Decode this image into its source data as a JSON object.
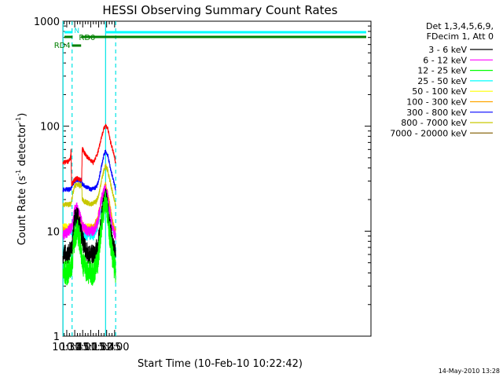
{
  "chart_data": {
    "type": "line",
    "title": "HESSI Observing Summary Count Rates",
    "xlabel": "Start Time (10-Feb-10 10:22:42)",
    "ylabel": "Count Rate (s",
    "ylabel_sup1": "-1",
    "ylabel_mid": " detector",
    "ylabel_sup2": "-1",
    "ylabel_end": ")",
    "x_unit": "minutes of day",
    "xlim": [
      622.7,
      1202
    ],
    "ylim": [
      1,
      1000
    ],
    "yscale": "log",
    "x_ticks": [
      {
        "t": 630,
        "label": "10:30"
      },
      {
        "t": 645,
        "label": "10:45"
      },
      {
        "t": 660,
        "label": "11:00"
      },
      {
        "t": 675,
        "label": "11:15"
      },
      {
        "t": 690,
        "label": "11:30"
      },
      {
        "t": 705,
        "label": "11:45"
      },
      {
        "t": 720,
        "label": "12:00"
      }
    ],
    "y_ticks": [
      {
        "v": 1,
        "label": "1"
      },
      {
        "v": 10,
        "label": "10"
      },
      {
        "v": 100,
        "label": "100"
      },
      {
        "v": 1000,
        "label": "1000"
      }
    ],
    "legend_header": [
      "Det 1,3,4,5,6,9,",
      "FDecim 1, Att 0"
    ],
    "legend_position": "right",
    "series": [
      {
        "name": "3 - 6 keV",
        "color": "#000000",
        "values": [
          [
            623,
            6
          ],
          [
            633,
            6
          ],
          [
            640,
            7
          ],
          [
            645,
            13
          ],
          [
            650,
            14
          ],
          [
            655,
            11
          ],
          [
            660,
            8
          ],
          [
            670,
            6
          ],
          [
            680,
            6
          ],
          [
            688,
            7
          ],
          [
            695,
            13
          ],
          [
            700,
            19
          ],
          [
            703,
            21
          ],
          [
            707,
            17
          ],
          [
            712,
            10
          ],
          [
            718,
            7
          ],
          [
            722,
            6
          ]
        ]
      },
      {
        "name": "6 - 12 keV",
        "color": "#ff00ff",
        "values": [
          [
            623,
            9
          ],
          [
            633,
            10
          ],
          [
            640,
            11
          ],
          [
            645,
            16
          ],
          [
            650,
            17
          ],
          [
            655,
            14
          ],
          [
            660,
            11
          ],
          [
            670,
            10
          ],
          [
            680,
            10
          ],
          [
            688,
            12
          ],
          [
            695,
            20
          ],
          [
            700,
            24
          ],
          [
            703,
            25
          ],
          [
            707,
            21
          ],
          [
            712,
            14
          ],
          [
            718,
            10
          ],
          [
            722,
            9
          ]
        ]
      },
      {
        "name": "12 - 25 keV",
        "color": "#00ff00",
        "values": [
          [
            623,
            4
          ],
          [
            633,
            4
          ],
          [
            640,
            5
          ],
          [
            645,
            9
          ],
          [
            650,
            10
          ],
          [
            655,
            8
          ],
          [
            660,
            5
          ],
          [
            670,
            4
          ],
          [
            680,
            4
          ],
          [
            688,
            5
          ],
          [
            695,
            11
          ],
          [
            700,
            17
          ],
          [
            703,
            19
          ],
          [
            707,
            15
          ],
          [
            712,
            8
          ],
          [
            718,
            5
          ],
          [
            722,
            4
          ]
        ]
      },
      {
        "name": "25 - 50 keV",
        "color": "#00ffff",
        "values": [
          [
            623,
            10
          ],
          [
            633,
            10
          ],
          [
            640,
            10
          ],
          [
            645,
            12
          ],
          [
            650,
            12
          ],
          [
            655,
            11
          ],
          [
            660,
            9
          ],
          [
            670,
            9
          ],
          [
            680,
            9
          ],
          [
            688,
            11
          ],
          [
            695,
            18
          ],
          [
            700,
            23
          ],
          [
            703,
            25
          ],
          [
            707,
            21
          ],
          [
            712,
            14
          ],
          [
            718,
            10
          ],
          [
            722,
            9
          ]
        ]
      },
      {
        "name": "50 - 100 keV",
        "color": "#ffff00",
        "values": [
          [
            623,
            11
          ],
          [
            633,
            11
          ],
          [
            640,
            11
          ],
          [
            645,
            14
          ],
          [
            650,
            15
          ],
          [
            655,
            13
          ],
          [
            660,
            11
          ],
          [
            670,
            11
          ],
          [
            680,
            11
          ],
          [
            688,
            12
          ],
          [
            695,
            19
          ],
          [
            700,
            24
          ],
          [
            703,
            26
          ],
          [
            707,
            22
          ],
          [
            712,
            15
          ],
          [
            718,
            11
          ],
          [
            722,
            10
          ]
        ]
      },
      {
        "name": "100 - 300 keV",
        "color": "#ffa500",
        "values": [
          [
            623,
            10
          ],
          [
            633,
            10
          ],
          [
            640,
            11
          ],
          [
            645,
            14
          ],
          [
            650,
            15
          ],
          [
            655,
            14
          ],
          [
            660,
            11
          ],
          [
            670,
            10
          ],
          [
            680,
            11
          ],
          [
            688,
            13
          ],
          [
            695,
            20
          ],
          [
            700,
            25
          ],
          [
            703,
            27
          ],
          [
            707,
            23
          ],
          [
            712,
            16
          ],
          [
            718,
            11
          ],
          [
            722,
            10
          ]
        ]
      },
      {
        "name": "300 - 800 keV",
        "color": "#0000ff",
        "values": [
          [
            623,
            25
          ],
          [
            633,
            25
          ],
          [
            638,
            25
          ],
          [
            639,
            26
          ],
          [
            645,
            30
          ],
          [
            650,
            31
          ],
          [
            655,
            30
          ],
          [
            658,
            31
          ],
          [
            659,
            28
          ],
          [
            665,
            27
          ],
          [
            675,
            25
          ],
          [
            685,
            26
          ],
          [
            690,
            30
          ],
          [
            695,
            41
          ],
          [
            700,
            53
          ],
          [
            703,
            58
          ],
          [
            707,
            53
          ],
          [
            712,
            40
          ],
          [
            718,
            30
          ],
          [
            722,
            25
          ]
        ]
      },
      {
        "name": "800 - 7000 keV",
        "color": "#c8c800",
        "values": [
          [
            623,
            18
          ],
          [
            633,
            18
          ],
          [
            638,
            18
          ],
          [
            639,
            20
          ],
          [
            645,
            27
          ],
          [
            650,
            28
          ],
          [
            655,
            27
          ],
          [
            658,
            28
          ],
          [
            659,
            20
          ],
          [
            665,
            19
          ],
          [
            675,
            18
          ],
          [
            685,
            19
          ],
          [
            690,
            22
          ],
          [
            695,
            30
          ],
          [
            700,
            38
          ],
          [
            703,
            42
          ],
          [
            707,
            38
          ],
          [
            712,
            29
          ],
          [
            718,
            21
          ],
          [
            722,
            18
          ]
        ]
      },
      {
        "name": "7000 - 20000 keV",
        "color": "#8b6914",
        "values": [
          [
            623,
            45
          ],
          [
            633,
            46
          ],
          [
            637,
            50
          ],
          [
            638,
            58
          ],
          [
            639,
            28
          ],
          [
            645,
            31
          ],
          [
            650,
            32
          ],
          [
            655,
            31
          ],
          [
            658,
            30
          ],
          [
            659,
            62
          ],
          [
            663,
            56
          ],
          [
            670,
            50
          ],
          [
            680,
            45
          ],
          [
            688,
            55
          ],
          [
            695,
            78
          ],
          [
            700,
            95
          ],
          [
            703,
            103
          ],
          [
            707,
            95
          ],
          [
            712,
            72
          ],
          [
            718,
            55
          ],
          [
            722,
            45
          ]
        ]
      },
      {
        "name": "",
        "color": "#ff0000",
        "values": [
          [
            623,
            45
          ],
          [
            633,
            46
          ],
          [
            637,
            50
          ],
          [
            638,
            58
          ],
          [
            639,
            28
          ],
          [
            645,
            31
          ],
          [
            650,
            32
          ],
          [
            655,
            31
          ],
          [
            658,
            30
          ],
          [
            659,
            62
          ],
          [
            663,
            56
          ],
          [
            670,
            50
          ],
          [
            680,
            45
          ],
          [
            688,
            55
          ],
          [
            695,
            78
          ],
          [
            700,
            95
          ],
          [
            703,
            103
          ],
          [
            707,
            95
          ],
          [
            712,
            72
          ],
          [
            718,
            55
          ],
          [
            722,
            45
          ]
        ]
      }
    ],
    "flags": {
      "N_label": "N",
      "RD0_label": "RD0",
      "RD4_label": "RD4"
    },
    "vlines": {
      "solid_cyan": [
        623,
        703
      ],
      "dashed_cyan": [
        640,
        722
      ]
    },
    "timestamp": "14-May-2010 13:28"
  }
}
